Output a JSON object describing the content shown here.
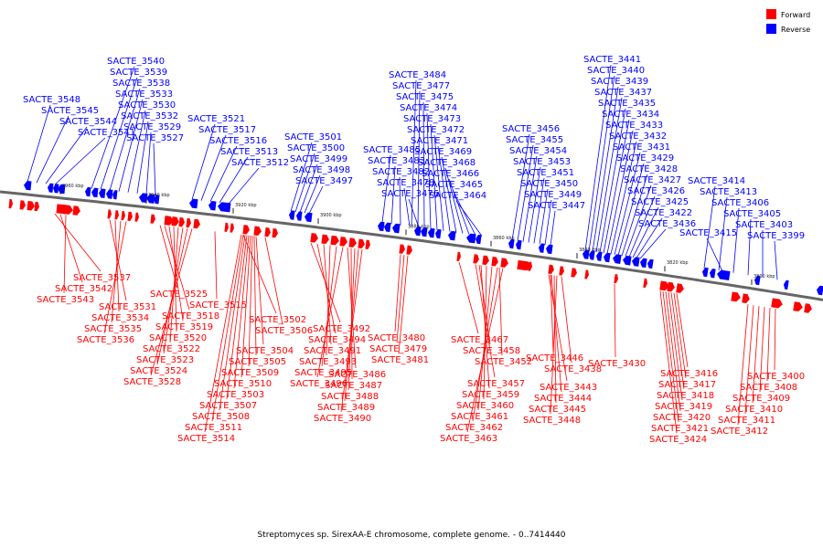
{
  "legend": {
    "forward_label": "Forward",
    "reverse_label": "Reverse",
    "forward_color": "#ff0000",
    "reverse_color": "#0000ff"
  },
  "caption": "Streptomyces sp. SirexAA-E chromosome, complete genome. - 0..7414440",
  "ticks": [
    "3960 kbp",
    "3940 kbp",
    "3920 kbp",
    "3900 kbp",
    "3880 kbp",
    "3860 kbp",
    "3840 kbp",
    "3820 kbp",
    "3800 kbp"
  ],
  "reverse_genes": [
    "SACTE_3548",
    "SACTE_3545",
    "SACTE_3544",
    "SACTE_3541",
    "SACTE_3540",
    "SACTE_3539",
    "SACTE_3538",
    "SACTE_3533",
    "SACTE_3530",
    "SACTE_3532",
    "SACTE_3529",
    "SACTE_3527",
    "SACTE_3521",
    "SACTE_3517",
    "SACTE_3516",
    "SACTE_3513",
    "SACTE_3512",
    "SACTE_3501",
    "SACTE_3500",
    "SACTE_3499",
    "SACTE_3498",
    "SACTE_3497",
    "SACTE_3484",
    "SACTE_3477",
    "SACTE_3475",
    "SACTE_3474",
    "SACTE_3473",
    "SACTE_3472",
    "SACTE_3471",
    "SACTE_3469",
    "SACTE_3468",
    "SACTE_3466",
    "SACTE_3465",
    "SACTE_3464",
    "SACTE_3485",
    "SACTE_3483",
    "SACTE_3482",
    "SACTE_3478",
    "SACTE_3476",
    "SACTE_3456",
    "SACTE_3455",
    "SACTE_3454",
    "SACTE_3453",
    "SACTE_3451",
    "SACTE_3450",
    "SACTE_3449",
    "SACTE_3447",
    "SACTE_3441",
    "SACTE_3440",
    "SACTE_3439",
    "SACTE_3437",
    "SACTE_3435",
    "SACTE_3434",
    "SACTE_3433",
    "SACTE_3432",
    "SACTE_3431",
    "SACTE_3429",
    "SACTE_3428",
    "SACTE_3427",
    "SACTE_3426",
    "SACTE_3425",
    "SACTE_3422",
    "SACTE_3436",
    "SACTE_3414",
    "SACTE_3413",
    "SACTE_3406",
    "SACTE_3405",
    "SACTE_3403",
    "SACTE_3399",
    "SACTE_3415"
  ],
  "forward_genes": [
    "SACTE_3537",
    "SACTE_3542",
    "SACTE_3543",
    "SACTE_3531",
    "SACTE_3534",
    "SACTE_3535",
    "SACTE_3536",
    "SACTE_3525",
    "SACTE_3515",
    "SACTE_3518",
    "SACTE_3519",
    "SACTE_3520",
    "SACTE_3522",
    "SACTE_3523",
    "SACTE_3524",
    "SACTE_3528",
    "SACTE_3502",
    "SACTE_3506",
    "SACTE_3504",
    "SACTE_3505",
    "SACTE_3509",
    "SACTE_3510",
    "SACTE_3503",
    "SACTE_3507",
    "SACTE_3508",
    "SACTE_3511",
    "SACTE_3514",
    "SACTE_3492",
    "SACTE_3494",
    "SACTE_3491",
    "SACTE_3493",
    "SACTE_3495",
    "SACTE_3496",
    "SACTE_3486",
    "SACTE_3487",
    "SACTE_3488",
    "SACTE_3489",
    "SACTE_3490",
    "SACTE_3480",
    "SACTE_3479",
    "SACTE_3481",
    "SACTE_3467",
    "SACTE_3458",
    "SACTE_3452",
    "SACTE_3457",
    "SACTE_3459",
    "SACTE_3460",
    "SACTE_3461",
    "SACTE_3462",
    "SACTE_3463",
    "SACTE_3446",
    "SACTE_3438",
    "SACTE_3443",
    "SACTE_3444",
    "SACTE_3445",
    "SACTE_3448",
    "SACTE_3430",
    "SACTE_3416",
    "SACTE_3417",
    "SACTE_3418",
    "SACTE_3419",
    "SACTE_3420",
    "SACTE_3421",
    "SACTE_3424",
    "SACTE_3400",
    "SACTE_3408",
    "SACTE_3409",
    "SACTE_3410",
    "SACTE_3411",
    "SACTE_3412"
  ]
}
